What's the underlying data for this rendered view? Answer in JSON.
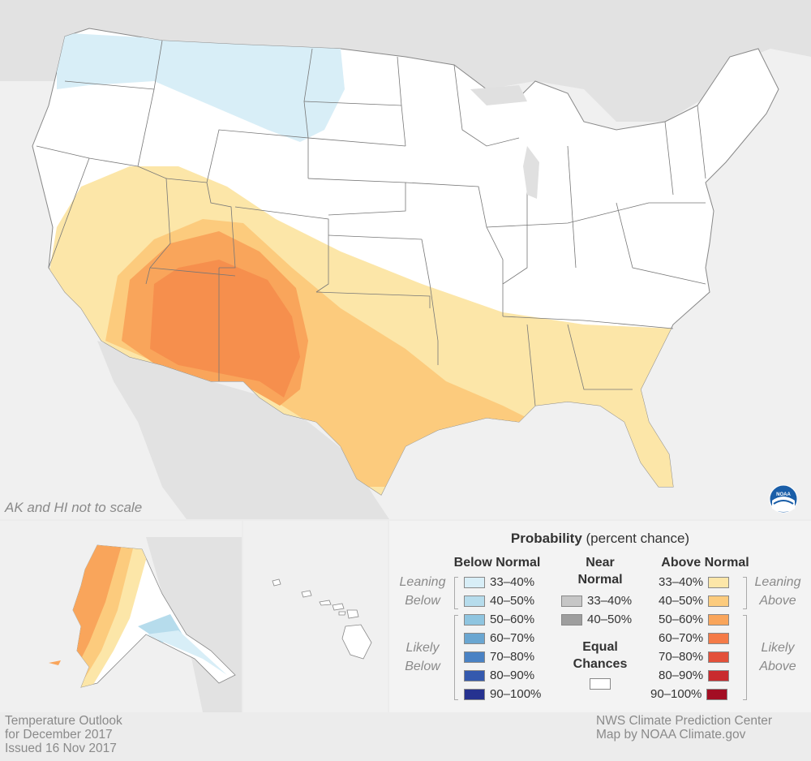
{
  "footer": {
    "outlook_line1": "Temperature Outlook",
    "outlook_line2": "for December 2017",
    "outlook_line3": "Issued 16 Nov 2017",
    "credit_line1": "NWS Climate Prediction Center",
    "credit_line2": "Map by NOAA Climate.gov"
  },
  "scale_note": "AK and HI not to scale",
  "legend": {
    "title_bold": "Probability",
    "title_rest": " (percent chance)",
    "below_header": "Below Normal",
    "near_header_1": "Near",
    "near_header_2": "Normal",
    "above_header": "Above Normal",
    "equal_header_1": "Equal",
    "equal_header_2": "Chances",
    "leaning_below_1": "Leaning",
    "leaning_below_2": "Below",
    "likely_below_1": "Likely",
    "likely_below_2": "Below",
    "leaning_above_1": "Leaning",
    "leaning_above_2": "Above",
    "likely_above_1": "Likely",
    "likely_above_2": "Above",
    "below": [
      {
        "label": "33–40%",
        "color": "#d8eef7"
      },
      {
        "label": "40–50%",
        "color": "#b6dcec"
      },
      {
        "label": "50–60%",
        "color": "#8fc5e0"
      },
      {
        "label": "60–70%",
        "color": "#6aa6d1"
      },
      {
        "label": "70–80%",
        "color": "#4a82c4"
      },
      {
        "label": "80–90%",
        "color": "#3459ae"
      },
      {
        "label": "90–100%",
        "color": "#263290"
      }
    ],
    "near": [
      {
        "label": "33–40%",
        "color": "#c6c6c6"
      },
      {
        "label": "40–50%",
        "color": "#9e9e9e"
      }
    ],
    "above": [
      {
        "label": "33–40%",
        "color": "#fce6a8"
      },
      {
        "label": "40–50%",
        "color": "#fccb7d"
      },
      {
        "label": "50–60%",
        "color": "#f9a55b"
      },
      {
        "label": "60–70%",
        "color": "#f47a47"
      },
      {
        "label": "70–80%",
        "color": "#e3503a"
      },
      {
        "label": "80–90%",
        "color": "#c92b2e"
      },
      {
        "label": "90–100%",
        "color": "#a30e23"
      }
    ],
    "equal_color": "#ffffff"
  },
  "colors": {
    "background_land": "#e3e3e3",
    "conus_land": "#ffffff",
    "state_lines": "#777777"
  },
  "logo": "noaa-logo"
}
